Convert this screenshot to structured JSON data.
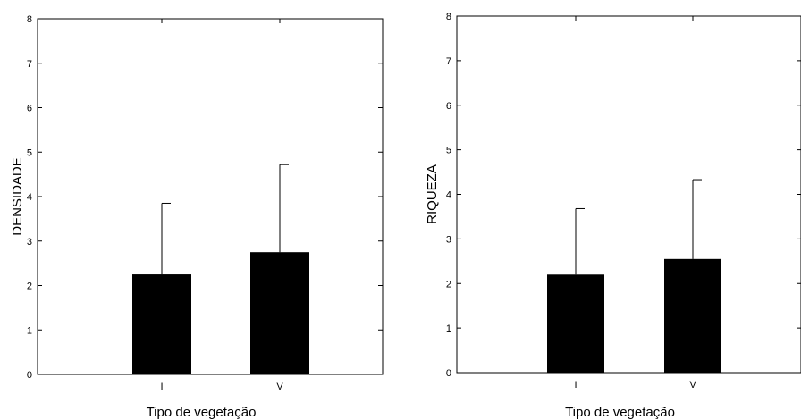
{
  "chart_data": [
    {
      "type": "bar",
      "categories": [
        "I",
        "V"
      ],
      "values": [
        2.25,
        2.75
      ],
      "error_upper": [
        3.85,
        4.72
      ],
      "xlabel": "Tipo de vegetação",
      "ylabel": "DENSIDADE",
      "ylim": [
        0,
        8
      ],
      "yticks": [
        0,
        1,
        2,
        3,
        4,
        5,
        6,
        7,
        8
      ],
      "grid": false,
      "bar_color": "#000000"
    },
    {
      "type": "bar",
      "categories": [
        "I",
        "V"
      ],
      "values": [
        2.2,
        2.55
      ],
      "error_upper": [
        3.68,
        4.33
      ],
      "xlabel": "Tipo de vegetação",
      "ylabel": "RIQUEZA",
      "ylim": [
        0,
        8
      ],
      "yticks": [
        0,
        1,
        2,
        3,
        4,
        5,
        6,
        7,
        8
      ],
      "grid": false,
      "bar_color": "#000000"
    }
  ]
}
